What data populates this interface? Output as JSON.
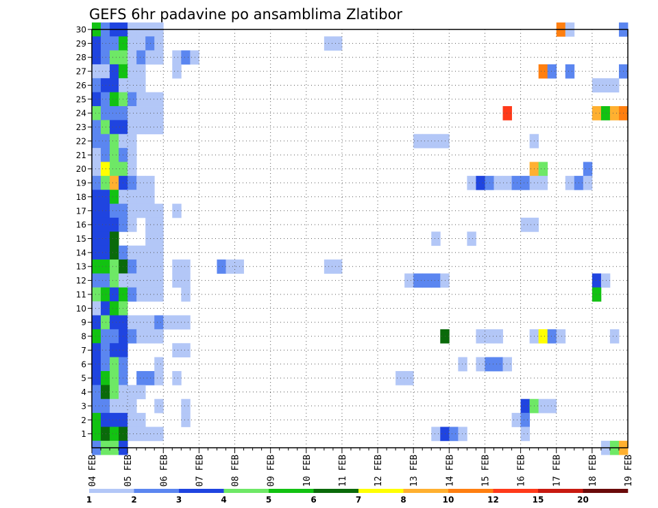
{
  "chart_data": {
    "type": "heatmap",
    "title": "GEFS 6hr padavine po ansamblima Zlatibor",
    "xlabel": "",
    "ylabel": "",
    "x_tick_labels": [
      "04 FEB",
      "05 FEB",
      "06 FEB",
      "07 FEB",
      "08 FEB",
      "09 FEB",
      "10 FEB",
      "11 FEB",
      "12 FEB",
      "13 FEB",
      "14 FEB",
      "15 FEB",
      "16 FEB",
      "17 FEB",
      "18 FEB",
      "19 FEB"
    ],
    "y_tick_labels": [
      "1",
      "2",
      "3",
      "4",
      "5",
      "6",
      "7",
      "8",
      "9",
      "10",
      "11",
      "12",
      "13",
      "14",
      "15",
      "16",
      "17",
      "18",
      "19",
      "20",
      "21",
      "22",
      "23",
      "24",
      "25",
      "26",
      "27",
      "28",
      "29",
      "30"
    ],
    "xlim": [
      0,
      60
    ],
    "ylim": [
      0,
      30
    ],
    "time_step_hours": 6,
    "grid": true,
    "colorbar": {
      "levels": [
        "1",
        "2",
        "3",
        "4",
        "5",
        "6",
        "7",
        "8",
        "10",
        "12",
        "15",
        "20"
      ],
      "colors": [
        "#b3c7f7",
        "#5b86f0",
        "#1f44e0",
        "#6ee866",
        "#12c212",
        "#0a6a0a",
        "#ffff00",
        "#ffb030",
        "#ff7f10",
        "#ff3a1a",
        "#c81a10",
        "#6a0a0a"
      ]
    },
    "cells_note": "each cell: [member, time_step_index, class_index 0..11]",
    "cells": [
      [
        30,
        0,
        4
      ],
      [
        30,
        1,
        1
      ],
      [
        30,
        2,
        2
      ],
      [
        30,
        3,
        2
      ],
      [
        30,
        4,
        0
      ],
      [
        30,
        5,
        0
      ],
      [
        30,
        6,
        0
      ],
      [
        30,
        7,
        0
      ],
      [
        30,
        52,
        8
      ],
      [
        30,
        53,
        0
      ],
      [
        30,
        59,
        1
      ],
      [
        29,
        0,
        2
      ],
      [
        29,
        1,
        1
      ],
      [
        29,
        2,
        1
      ],
      [
        29,
        3,
        4
      ],
      [
        29,
        4,
        0
      ],
      [
        29,
        5,
        0
      ],
      [
        29,
        6,
        1
      ],
      [
        29,
        7,
        0
      ],
      [
        29,
        26,
        0
      ],
      [
        29,
        27,
        0
      ],
      [
        28,
        0,
        2
      ],
      [
        28,
        1,
        1
      ],
      [
        28,
        2,
        3
      ],
      [
        28,
        3,
        3
      ],
      [
        28,
        4,
        0
      ],
      [
        28,
        5,
        1
      ],
      [
        28,
        6,
        0
      ],
      [
        28,
        7,
        0
      ],
      [
        28,
        9,
        0
      ],
      [
        28,
        10,
        1
      ],
      [
        28,
        11,
        0
      ],
      [
        27,
        0,
        0
      ],
      [
        27,
        1,
        0
      ],
      [
        27,
        2,
        2
      ],
      [
        27,
        3,
        4
      ],
      [
        27,
        4,
        0
      ],
      [
        27,
        5,
        0
      ],
      [
        27,
        9,
        0
      ],
      [
        27,
        50,
        8
      ],
      [
        27,
        51,
        1
      ],
      [
        27,
        53,
        1
      ],
      [
        27,
        59,
        1
      ],
      [
        26,
        0,
        1
      ],
      [
        26,
        1,
        2
      ],
      [
        26,
        2,
        2
      ],
      [
        26,
        3,
        0
      ],
      [
        26,
        4,
        0
      ],
      [
        26,
        5,
        0
      ],
      [
        26,
        56,
        0
      ],
      [
        26,
        57,
        0
      ],
      [
        26,
        58,
        0
      ],
      [
        25,
        0,
        2
      ],
      [
        25,
        1,
        1
      ],
      [
        25,
        2,
        4
      ],
      [
        25,
        3,
        3
      ],
      [
        25,
        4,
        1
      ],
      [
        25,
        5,
        0
      ],
      [
        25,
        6,
        0
      ],
      [
        25,
        7,
        0
      ],
      [
        24,
        0,
        3
      ],
      [
        24,
        1,
        1
      ],
      [
        24,
        2,
        1
      ],
      [
        24,
        3,
        1
      ],
      [
        24,
        4,
        0
      ],
      [
        24,
        5,
        0
      ],
      [
        24,
        6,
        0
      ],
      [
        24,
        7,
        0
      ],
      [
        24,
        46,
        9
      ],
      [
        24,
        56,
        7
      ],
      [
        24,
        57,
        4
      ],
      [
        24,
        58,
        7
      ],
      [
        24,
        59,
        8
      ],
      [
        23,
        0,
        1
      ],
      [
        23,
        1,
        3
      ],
      [
        23,
        2,
        2
      ],
      [
        23,
        3,
        2
      ],
      [
        23,
        4,
        0
      ],
      [
        23,
        5,
        0
      ],
      [
        23,
        6,
        0
      ],
      [
        23,
        7,
        0
      ],
      [
        22,
        0,
        1
      ],
      [
        22,
        1,
        1
      ],
      [
        22,
        2,
        3
      ],
      [
        22,
        3,
        0
      ],
      [
        22,
        4,
        0
      ],
      [
        22,
        36,
        0
      ],
      [
        22,
        37,
        0
      ],
      [
        22,
        38,
        0
      ],
      [
        22,
        39,
        0
      ],
      [
        22,
        49,
        0
      ],
      [
        21,
        0,
        0
      ],
      [
        21,
        1,
        1
      ],
      [
        21,
        2,
        3
      ],
      [
        21,
        3,
        1
      ],
      [
        21,
        4,
        0
      ],
      [
        20,
        0,
        0
      ],
      [
        20,
        1,
        6
      ],
      [
        20,
        2,
        3
      ],
      [
        20,
        3,
        3
      ],
      [
        20,
        4,
        0
      ],
      [
        20,
        49,
        7
      ],
      [
        20,
        50,
        3
      ],
      [
        20,
        55,
        1
      ],
      [
        19,
        0,
        1
      ],
      [
        19,
        1,
        3
      ],
      [
        19,
        2,
        7
      ],
      [
        19,
        3,
        2
      ],
      [
        19,
        4,
        1
      ],
      [
        19,
        5,
        0
      ],
      [
        19,
        6,
        0
      ],
      [
        19,
        42,
        0
      ],
      [
        19,
        43,
        2
      ],
      [
        19,
        44,
        1
      ],
      [
        19,
        45,
        0
      ],
      [
        19,
        46,
        0
      ],
      [
        19,
        47,
        1
      ],
      [
        19,
        48,
        1
      ],
      [
        19,
        49,
        0
      ],
      [
        19,
        50,
        0
      ],
      [
        19,
        53,
        0
      ],
      [
        19,
        54,
        1
      ],
      [
        19,
        55,
        0
      ],
      [
        18,
        0,
        2
      ],
      [
        18,
        1,
        2
      ],
      [
        18,
        2,
        4
      ],
      [
        18,
        3,
        0
      ],
      [
        18,
        4,
        0
      ],
      [
        18,
        5,
        0
      ],
      [
        18,
        6,
        0
      ],
      [
        17,
        0,
        2
      ],
      [
        17,
        1,
        2
      ],
      [
        17,
        2,
        1
      ],
      [
        17,
        3,
        1
      ],
      [
        17,
        4,
        0
      ],
      [
        17,
        5,
        0
      ],
      [
        17,
        6,
        0
      ],
      [
        17,
        7,
        0
      ],
      [
        17,
        9,
        0
      ],
      [
        16,
        0,
        2
      ],
      [
        16,
        1,
        2
      ],
      [
        16,
        2,
        2
      ],
      [
        16,
        3,
        1
      ],
      [
        16,
        4,
        0
      ],
      [
        16,
        6,
        0
      ],
      [
        16,
        7,
        0
      ],
      [
        16,
        48,
        0
      ],
      [
        16,
        49,
        0
      ],
      [
        15,
        0,
        2
      ],
      [
        15,
        1,
        2
      ],
      [
        15,
        2,
        5
      ],
      [
        15,
        6,
        0
      ],
      [
        15,
        7,
        0
      ],
      [
        15,
        38,
        0
      ],
      [
        15,
        42,
        0
      ],
      [
        14,
        0,
        2
      ],
      [
        14,
        1,
        2
      ],
      [
        14,
        2,
        5
      ],
      [
        14,
        3,
        1
      ],
      [
        14,
        4,
        0
      ],
      [
        14,
        5,
        0
      ],
      [
        14,
        6,
        0
      ],
      [
        14,
        7,
        0
      ],
      [
        13,
        0,
        4
      ],
      [
        13,
        1,
        4
      ],
      [
        13,
        2,
        3
      ],
      [
        13,
        3,
        5
      ],
      [
        13,
        4,
        1
      ],
      [
        13,
        5,
        0
      ],
      [
        13,
        6,
        0
      ],
      [
        13,
        7,
        0
      ],
      [
        13,
        9,
        0
      ],
      [
        13,
        10,
        0
      ],
      [
        13,
        14,
        1
      ],
      [
        13,
        15,
        0
      ],
      [
        13,
        16,
        0
      ],
      [
        13,
        26,
        0
      ],
      [
        13,
        27,
        0
      ],
      [
        12,
        0,
        1
      ],
      [
        12,
        1,
        1
      ],
      [
        12,
        2,
        3
      ],
      [
        12,
        3,
        0
      ],
      [
        12,
        4,
        0
      ],
      [
        12,
        5,
        0
      ],
      [
        12,
        6,
        0
      ],
      [
        12,
        7,
        0
      ],
      [
        12,
        9,
        0
      ],
      [
        12,
        10,
        0
      ],
      [
        12,
        35,
        0
      ],
      [
        12,
        36,
        1
      ],
      [
        12,
        37,
        1
      ],
      [
        12,
        38,
        1
      ],
      [
        12,
        39,
        0
      ],
      [
        12,
        56,
        2
      ],
      [
        12,
        57,
        0
      ],
      [
        11,
        0,
        3
      ],
      [
        11,
        1,
        4
      ],
      [
        11,
        2,
        2
      ],
      [
        11,
        3,
        4
      ],
      [
        11,
        4,
        1
      ],
      [
        11,
        5,
        0
      ],
      [
        11,
        6,
        0
      ],
      [
        11,
        7,
        0
      ],
      [
        11,
        10,
        0
      ],
      [
        11,
        56,
        4
      ],
      [
        10,
        0,
        0
      ],
      [
        10,
        1,
        2
      ],
      [
        10,
        2,
        4
      ],
      [
        10,
        3,
        3
      ],
      [
        9,
        0,
        2
      ],
      [
        9,
        1,
        3
      ],
      [
        9,
        2,
        2
      ],
      [
        9,
        3,
        2
      ],
      [
        9,
        4,
        0
      ],
      [
        9,
        5,
        0
      ],
      [
        9,
        6,
        0
      ],
      [
        9,
        7,
        1
      ],
      [
        9,
        8,
        0
      ],
      [
        9,
        9,
        0
      ],
      [
        9,
        10,
        0
      ],
      [
        8,
        0,
        4
      ],
      [
        8,
        1,
        1
      ],
      [
        8,
        2,
        1
      ],
      [
        8,
        3,
        2
      ],
      [
        8,
        4,
        1
      ],
      [
        8,
        5,
        0
      ],
      [
        8,
        6,
        0
      ],
      [
        8,
        7,
        0
      ],
      [
        8,
        39,
        5
      ],
      [
        8,
        43,
        0
      ],
      [
        8,
        44,
        0
      ],
      [
        8,
        45,
        0
      ],
      [
        8,
        49,
        0
      ],
      [
        8,
        50,
        6
      ],
      [
        8,
        51,
        1
      ],
      [
        8,
        52,
        0
      ],
      [
        8,
        58,
        0
      ],
      [
        7,
        0,
        2
      ],
      [
        7,
        1,
        1
      ],
      [
        7,
        2,
        2
      ],
      [
        7,
        3,
        2
      ],
      [
        7,
        9,
        0
      ],
      [
        7,
        10,
        0
      ],
      [
        6,
        0,
        2
      ],
      [
        6,
        1,
        1
      ],
      [
        6,
        2,
        3
      ],
      [
        6,
        3,
        1
      ],
      [
        6,
        7,
        0
      ],
      [
        6,
        41,
        0
      ],
      [
        6,
        43,
        0
      ],
      [
        6,
        44,
        1
      ],
      [
        6,
        45,
        1
      ],
      [
        6,
        46,
        0
      ],
      [
        5,
        0,
        2
      ],
      [
        5,
        1,
        4
      ],
      [
        5,
        2,
        3
      ],
      [
        5,
        3,
        1
      ],
      [
        5,
        5,
        1
      ],
      [
        5,
        6,
        1
      ],
      [
        5,
        7,
        0
      ],
      [
        5,
        9,
        0
      ],
      [
        5,
        34,
        0
      ],
      [
        5,
        35,
        0
      ],
      [
        4,
        0,
        1
      ],
      [
        4,
        1,
        5
      ],
      [
        4,
        2,
        3
      ],
      [
        4,
        3,
        0
      ],
      [
        4,
        4,
        0
      ],
      [
        4,
        5,
        0
      ],
      [
        3,
        0,
        1
      ],
      [
        3,
        1,
        1
      ],
      [
        3,
        2,
        0
      ],
      [
        3,
        3,
        0
      ],
      [
        3,
        4,
        0
      ],
      [
        3,
        7,
        0
      ],
      [
        3,
        10,
        0
      ],
      [
        3,
        48,
        2
      ],
      [
        3,
        49,
        3
      ],
      [
        3,
        50,
        0
      ],
      [
        3,
        51,
        0
      ],
      [
        2,
        0,
        4
      ],
      [
        2,
        1,
        2
      ],
      [
        2,
        2,
        2
      ],
      [
        2,
        3,
        2
      ],
      [
        2,
        4,
        0
      ],
      [
        2,
        5,
        0
      ],
      [
        2,
        10,
        0
      ],
      [
        2,
        47,
        0
      ],
      [
        2,
        48,
        1
      ],
      [
        1,
        0,
        4
      ],
      [
        1,
        1,
        5
      ],
      [
        1,
        2,
        4
      ],
      [
        1,
        3,
        5
      ],
      [
        1,
        4,
        0
      ],
      [
        1,
        5,
        0
      ],
      [
        1,
        6,
        0
      ],
      [
        1,
        7,
        0
      ],
      [
        1,
        38,
        0
      ],
      [
        1,
        39,
        2
      ],
      [
        1,
        40,
        1
      ],
      [
        1,
        41,
        0
      ],
      [
        1,
        48,
        0
      ],
      [
        0,
        0,
        1
      ],
      [
        0,
        1,
        3
      ],
      [
        0,
        2,
        3
      ],
      [
        0,
        3,
        2
      ],
      [
        0,
        57,
        0
      ],
      [
        0,
        58,
        3
      ],
      [
        0,
        59,
        7
      ]
    ]
  }
}
